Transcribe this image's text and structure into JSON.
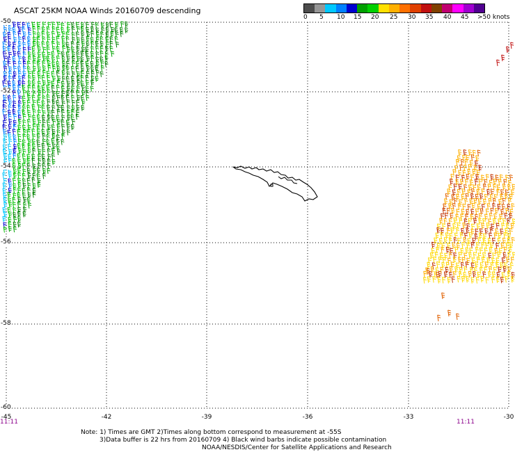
{
  "title": "ASCAT 25KM NOAA Winds 20160709 descending",
  "legend": {
    "labels": [
      "0",
      "5",
      "10",
      "15",
      "20",
      "25",
      "30",
      "35",
      "40",
      "45",
      ">50 knots"
    ],
    "colors": [
      "#4d4d4d",
      "#969696",
      "#00c8ff",
      "#0080ff",
      "#0000d0",
      "#00a000",
      "#00d000",
      "#ffe000",
      "#ffb000",
      "#ff7000",
      "#e04000",
      "#c01010",
      "#804000",
      "#c00070",
      "#ff00ff",
      "#a000d0",
      "#500090"
    ]
  },
  "lat_labels": [
    "-50",
    "-52",
    "-54",
    "-56",
    "-58",
    "-60"
  ],
  "lon_labels": [
    "-45",
    "-42",
    "-39",
    "-36",
    "-33",
    "-30"
  ],
  "time_labels": {
    "left": "11:11",
    "right": "11:11"
  },
  "notes": {
    "line1": "Note: 1) Times are GMT 2)Times along bottom correspond to measurement at -55S",
    "line2": "3)Data buffer is 22 hrs from 20160709 4) Black wind barbs indicate possible contamination",
    "line3": "NOAA/NESDIS/Center for Satellite Applications and Research"
  }
}
